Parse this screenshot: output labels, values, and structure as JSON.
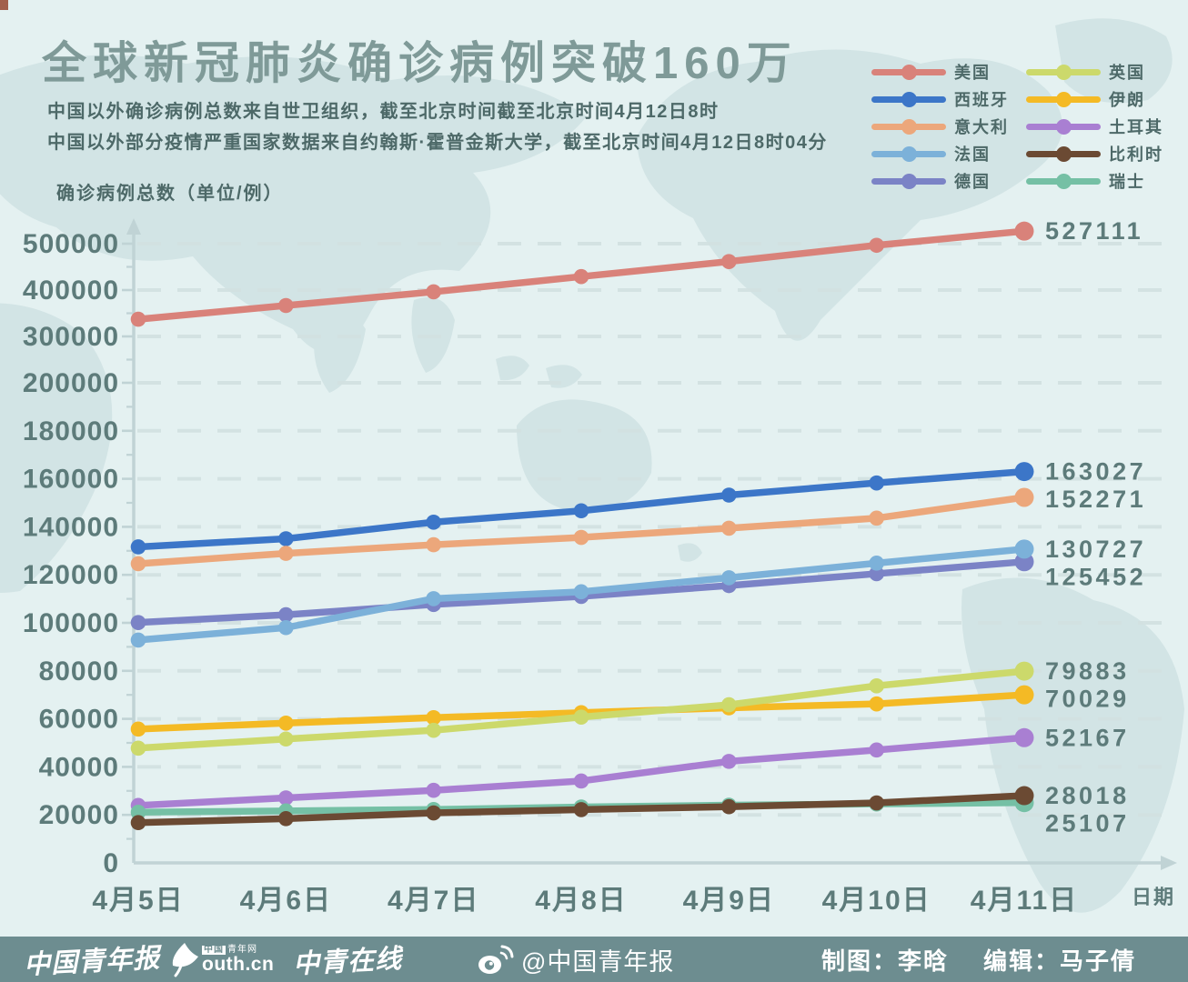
{
  "title": "全球新冠肺炎确诊病例突破160万",
  "subtitles": [
    "中国以外确诊病例总数来自世卫组织，截至北京时间截至北京时间4月12日8时",
    "中国以外部分疫情严重国家数据来自约翰斯·霍普金斯大学，截至北京时间4月12日8时04分"
  ],
  "axis": {
    "y_title": "确诊病例总数（单位/例）",
    "x_title": "日期"
  },
  "chart_data": {
    "type": "line",
    "categories": [
      "4月5日",
      "4月6日",
      "4月7日",
      "4月8日",
      "4月9日",
      "4月10日",
      "4月11日"
    ],
    "y_ticks": [
      0,
      20000,
      40000,
      60000,
      80000,
      100000,
      120000,
      140000,
      160000,
      180000,
      200000,
      300000,
      400000,
      500000
    ],
    "axis_note": "y axis is compressed above 200000 (100000 per major step instead of 20000)",
    "ylim": [
      0,
      540000
    ],
    "grid": true,
    "legend_position": "top-right",
    "series": [
      {
        "name": "美国",
        "color": "#d9827a",
        "values": [
          337072,
          366667,
          396223,
          429052,
          461437,
          496535,
          527111
        ],
        "end_label": "527111"
      },
      {
        "name": "西班牙",
        "color": "#3c76c8",
        "values": [
          131646,
          135032,
          141942,
          146690,
          153222,
          158273,
          163027
        ],
        "end_label": "163027"
      },
      {
        "name": "意大利",
        "color": "#eca77b",
        "values": [
          124632,
          128948,
          132547,
          135586,
          139422,
          143626,
          152271
        ],
        "end_label": "152271"
      },
      {
        "name": "法国",
        "color": "#7cb1d9",
        "values": [
          92839,
          98010,
          110070,
          112950,
          118785,
          124869,
          130727
        ],
        "end_label": "130727"
      },
      {
        "name": "德国",
        "color": "#7b83c6",
        "values": [
          100123,
          103374,
          107663,
          111010,
          115523,
          120479,
          125452
        ],
        "end_label": "125452"
      },
      {
        "name": "英国",
        "color": "#ccd96b",
        "values": [
          47806,
          51608,
          55242,
          60733,
          65872,
          73758,
          79883
        ],
        "end_label": "79883"
      },
      {
        "name": "伊朗",
        "color": "#f4ba25",
        "values": [
          55743,
          58226,
          60500,
          62589,
          64586,
          66220,
          70029
        ],
        "end_label": "70029"
      },
      {
        "name": "土耳其",
        "color": "#a97fd2",
        "values": [
          23934,
          27069,
          30217,
          34109,
          42282,
          47029,
          52167
        ],
        "end_label": "52167"
      },
      {
        "name": "比利时",
        "color": "#6b4a33",
        "values": [
          16770,
          18431,
          20814,
          22194,
          23403,
          24983,
          28018
        ],
        "end_label": "28018"
      },
      {
        "name": "瑞士",
        "color": "#75c0a5",
        "values": [
          21100,
          21657,
          22253,
          23280,
          24051,
          24551,
          25107
        ],
        "end_label": "25107"
      }
    ]
  },
  "footer": {
    "logo_cyd": "中国青年报",
    "logo_youth_badge": "中国",
    "logo_youth_badge2": "青年网",
    "logo_youth_cn": "outh.cn",
    "logo_zqol": "中青在线",
    "weibo_handle": "@中国青年报",
    "credit_designer": "制图：李晗",
    "credit_editor": "编辑：马子倩"
  },
  "colors": {
    "background": "#e4f1f1",
    "map": "#d2e4e5",
    "title": "#7f9a98",
    "text": "#4d6968",
    "axis_labels": "#5d7b7a",
    "axis_line": "#c0d3d5",
    "grid": "#d2e1e1",
    "footer_bar": "#6d8d90",
    "footer_text": "#ffffff"
  }
}
